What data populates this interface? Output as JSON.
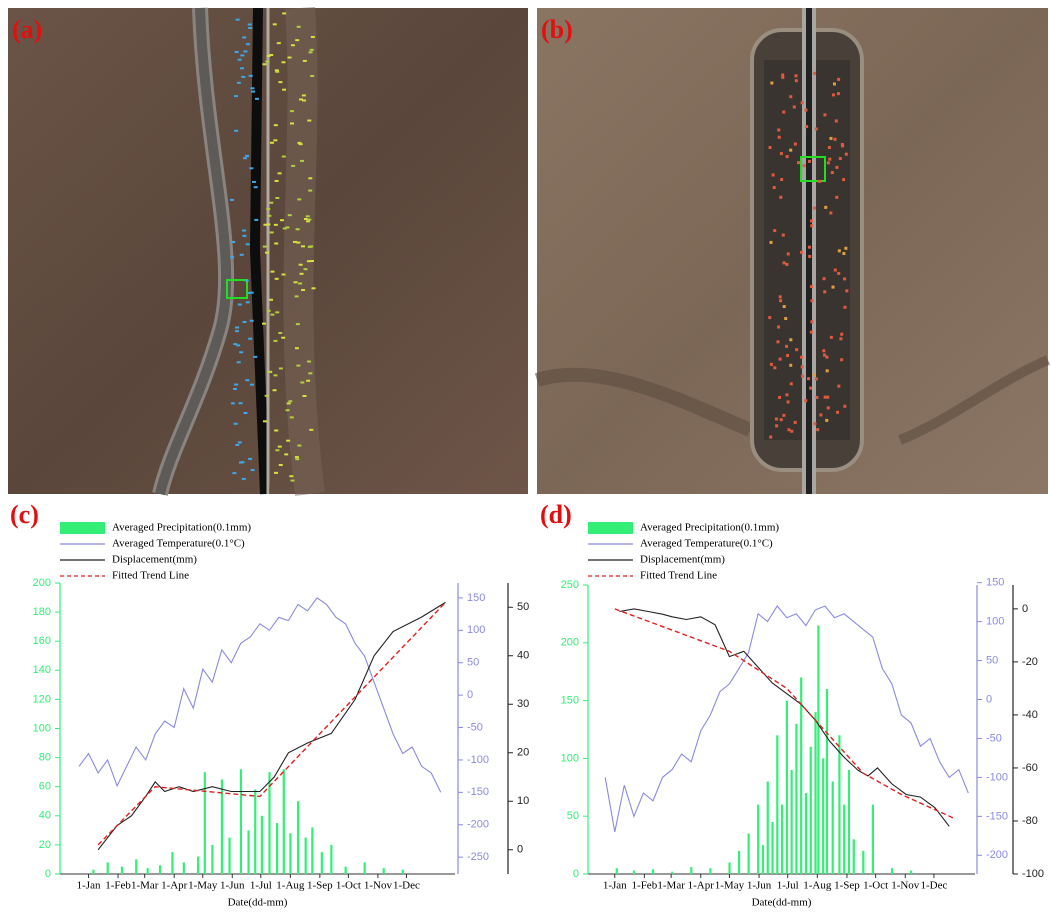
{
  "image_labels": [
    "(a)",
    "(b)"
  ],
  "chart_data": [
    {
      "type": "line",
      "label": "(c)",
      "xlabel": "Date(dd-mm)",
      "xlim": [
        -30,
        385
      ],
      "xticks": [
        {
          "value": 0,
          "label": "1-Jan"
        },
        {
          "value": 31,
          "label": "1-Feb"
        },
        {
          "value": 59,
          "label": "1-Mar"
        },
        {
          "value": 90,
          "label": "1-Apr"
        },
        {
          "value": 120,
          "label": "1-May"
        },
        {
          "value": 151,
          "label": "1-Jun"
        },
        {
          "value": 181,
          "label": "1-Jul"
        },
        {
          "value": 212,
          "label": "1-Aug"
        },
        {
          "value": 243,
          "label": "1-Sep"
        },
        {
          "value": 273,
          "label": "1-Oct"
        },
        {
          "value": 304,
          "label": "1-Nov"
        },
        {
          "value": 334,
          "label": "1-Dec"
        }
      ],
      "ylim": [
        0,
        200
      ],
      "yticks": [
        0,
        20,
        40,
        60,
        80,
        100,
        120,
        140,
        160,
        180,
        200
      ],
      "y2lim": [
        -276,
        173
      ],
      "y2ticks": [
        -250,
        -200,
        -150,
        -100,
        -50,
        0,
        50,
        100,
        150
      ],
      "y3lim": [
        -5,
        55
      ],
      "y3ticks": [
        0,
        10,
        20,
        30,
        40,
        50
      ],
      "series": [
        {
          "name": "Averaged Precipitation(0.1mm)",
          "color": "#33ee77",
          "axis": "y",
          "style": "bar",
          "x": [
            5,
            20,
            35,
            50,
            62,
            75,
            88,
            100,
            115,
            122,
            130,
            140,
            148,
            160,
            168,
            175,
            182,
            190,
            198,
            205,
            212,
            220,
            228,
            235,
            245,
            255,
            270,
            290,
            310,
            330
          ],
          "values": [
            3,
            8,
            5,
            10,
            4,
            6,
            15,
            8,
            12,
            70,
            20,
            65,
            25,
            72,
            30,
            58,
            40,
            70,
            35,
            72,
            28,
            50,
            25,
            32,
            15,
            20,
            5,
            8,
            4,
            3
          ]
        },
        {
          "name": "Averaged Temperature(0.1°C)",
          "color": "#8a8ae0",
          "axis": "y2",
          "style": "line",
          "x": [
            -10,
            0,
            10,
            20,
            30,
            40,
            50,
            60,
            70,
            80,
            90,
            100,
            110,
            120,
            130,
            140,
            150,
            160,
            170,
            180,
            190,
            200,
            210,
            220,
            230,
            240,
            250,
            260,
            270,
            280,
            290,
            300,
            310,
            320,
            330,
            340,
            350,
            360,
            370
          ],
          "values": [
            -110,
            -90,
            -120,
            -100,
            -140,
            -110,
            -80,
            -100,
            -60,
            -40,
            -50,
            10,
            -20,
            40,
            20,
            70,
            50,
            80,
            90,
            110,
            100,
            120,
            115,
            140,
            130,
            150,
            140,
            120,
            110,
            80,
            60,
            20,
            -20,
            -60,
            -90,
            -80,
            -110,
            -120,
            -150
          ]
        },
        {
          "name": "Displacement(mm)",
          "color": "#222222",
          "axis": "y3",
          "style": "line",
          "x": [
            10,
            30,
            45,
            60,
            70,
            80,
            95,
            110,
            130,
            150,
            170,
            180,
            195,
            210,
            230,
            255,
            280,
            300,
            320,
            350,
            375
          ],
          "values": [
            0,
            5,
            7,
            11,
            14,
            12,
            13,
            12,
            13,
            12,
            12,
            12,
            15,
            20,
            22,
            24,
            31,
            40,
            45,
            48,
            51
          ]
        },
        {
          "name": "Fitted Trend Line",
          "color": "#e02020",
          "axis": "y3",
          "style": "dashed",
          "x": [
            10,
            70,
            180,
            375
          ],
          "values": [
            1,
            13,
            11,
            51
          ]
        }
      ]
    },
    {
      "type": "line",
      "label": "(d)",
      "xlabel": "Date(dd-mm)",
      "xlim": [
        -28,
        377
      ],
      "xticks": [
        {
          "value": 0,
          "label": "1-Jan"
        },
        {
          "value": 31,
          "label": "1-Feb"
        },
        {
          "value": 59,
          "label": "1-Mar"
        },
        {
          "value": 90,
          "label": "1-Apr"
        },
        {
          "value": 120,
          "label": "1-May"
        },
        {
          "value": 151,
          "label": "1-Jun"
        },
        {
          "value": 181,
          "label": "1-Jul"
        },
        {
          "value": 212,
          "label": "1-Aug"
        },
        {
          "value": 243,
          "label": "1-Sep"
        },
        {
          "value": 273,
          "label": "1-Oct"
        },
        {
          "value": 304,
          "label": "1-Nov"
        },
        {
          "value": 334,
          "label": "1-Dec"
        }
      ],
      "ylim": [
        0,
        250
      ],
      "yticks": [
        0,
        50,
        100,
        150,
        200,
        250
      ],
      "y2lim": [
        -224,
        147
      ],
      "y2ticks": [
        -200,
        -150,
        -100,
        -50,
        0,
        50,
        100,
        150
      ],
      "y3lim": [
        -100,
        9
      ],
      "y3ticks": [
        -100,
        -80,
        -60,
        -40,
        -20,
        0
      ],
      "series": [
        {
          "name": "Averaged Precipitation(0.1mm)",
          "color": "#33ee77",
          "axis": "y",
          "style": "bar",
          "x": [
            2,
            20,
            40,
            60,
            80,
            100,
            120,
            130,
            140,
            150,
            155,
            160,
            165,
            170,
            175,
            180,
            185,
            190,
            195,
            200,
            205,
            210,
            213,
            218,
            222,
            228,
            235,
            240,
            245,
            250,
            260,
            270,
            290,
            310
          ],
          "values": [
            5,
            3,
            4,
            2,
            6,
            5,
            10,
            20,
            35,
            60,
            25,
            80,
            45,
            120,
            60,
            150,
            90,
            130,
            170,
            70,
            110,
            140,
            215,
            100,
            160,
            80,
            120,
            60,
            90,
            30,
            20,
            60,
            5,
            3
          ]
        },
        {
          "name": "Averaged Temperature(0.1°C)",
          "color": "#8a8ae0",
          "axis": "y2",
          "style": "line",
          "x": [
            -10,
            0,
            10,
            20,
            30,
            40,
            50,
            60,
            70,
            80,
            90,
            100,
            110,
            120,
            130,
            140,
            150,
            160,
            170,
            180,
            190,
            200,
            210,
            220,
            230,
            240,
            250,
            260,
            270,
            280,
            290,
            300,
            310,
            320,
            330,
            340,
            350,
            360,
            370
          ],
          "values": [
            -100,
            -170,
            -110,
            -150,
            -120,
            -130,
            -100,
            -90,
            -70,
            -80,
            -40,
            -20,
            10,
            20,
            40,
            60,
            110,
            100,
            120,
            105,
            110,
            95,
            115,
            120,
            105,
            110,
            100,
            90,
            80,
            40,
            20,
            -20,
            -30,
            -60,
            -50,
            -80,
            -100,
            -90,
            -120
          ]
        },
        {
          "name": "Displacement(mm)",
          "color": "#222222",
          "axis": "y3",
          "style": "line",
          "x": [
            5,
            20,
            35,
            50,
            60,
            75,
            90,
            105,
            120,
            135,
            150,
            165,
            180,
            195,
            210,
            225,
            240,
            255,
            265,
            275,
            290,
            305,
            320,
            335,
            350
          ],
          "values": [
            -1,
            0,
            -1,
            -2,
            -3,
            -4,
            -3,
            -6,
            -18,
            -16,
            -22,
            -28,
            -32,
            -36,
            -42,
            -50,
            -56,
            -61,
            -63,
            -60,
            -66,
            -70,
            -71,
            -75,
            -82
          ]
        },
        {
          "name": "Fitted Trend Line",
          "color": "#e02020",
          "axis": "y3",
          "style": "dashed",
          "x": [
            0,
            120,
            180,
            230,
            260,
            300,
            355
          ],
          "values": [
            0,
            -16,
            -30,
            -50,
            -62,
            -70,
            -79
          ]
        }
      ]
    }
  ]
}
